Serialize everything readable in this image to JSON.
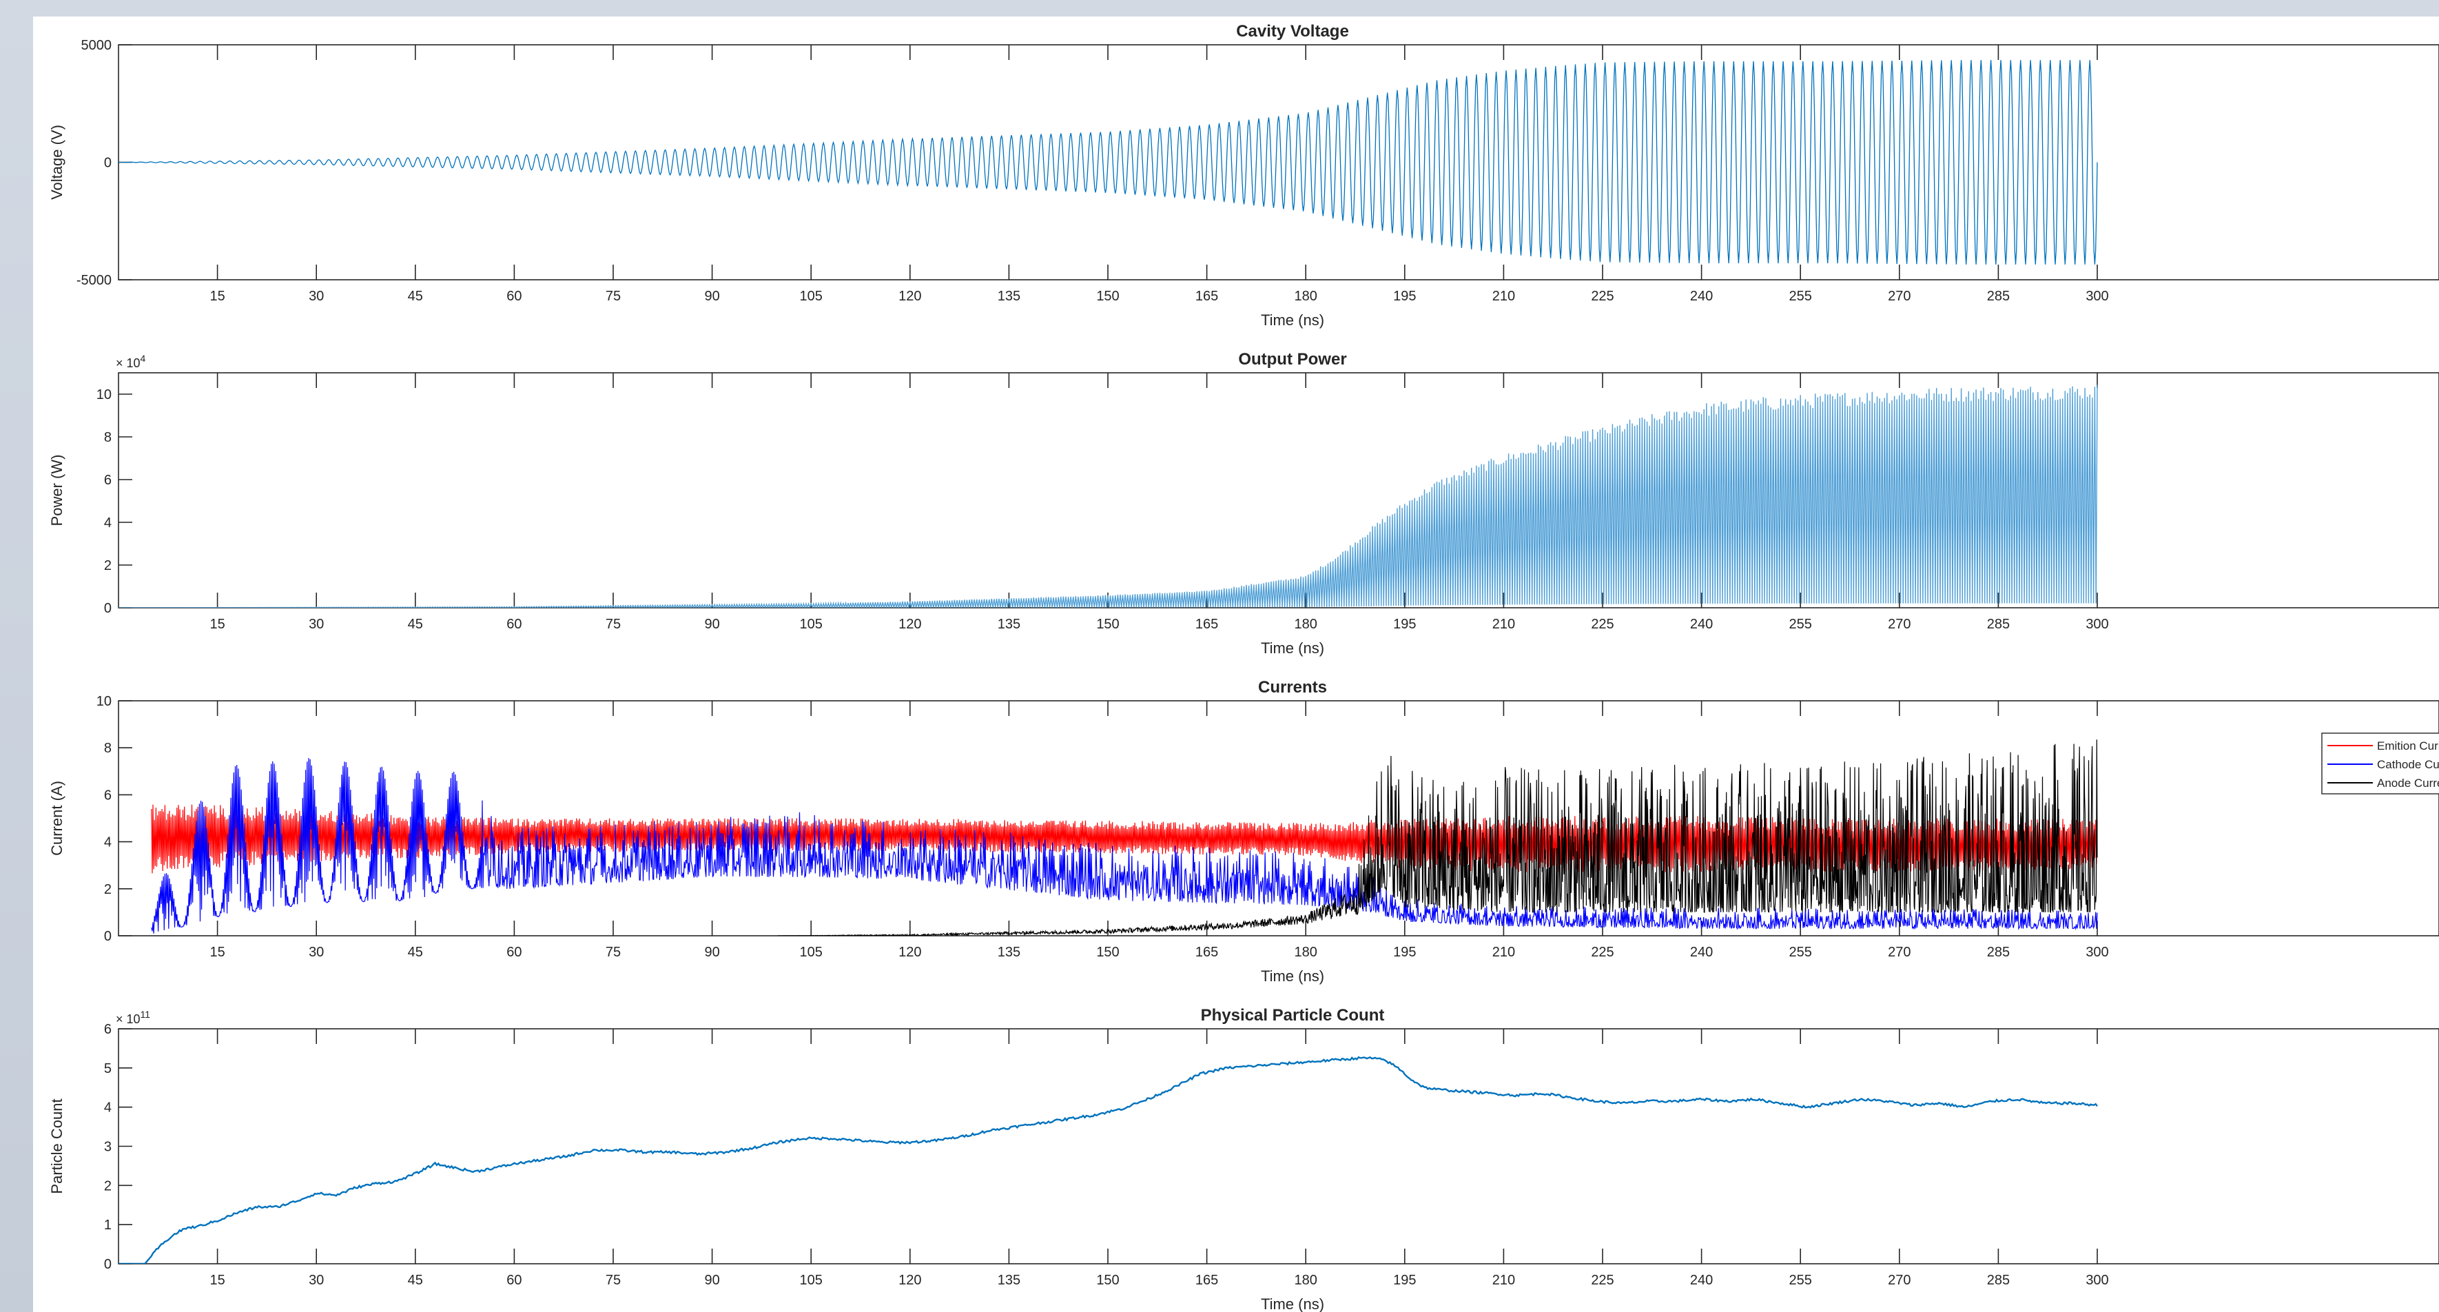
{
  "chart_data": [
    {
      "type": "line",
      "title": "Cavity Voltage",
      "xlabel": "Time (ns)",
      "ylabel": "Voltage (V)",
      "xlim": [
        0,
        300
      ],
      "ylim": [
        -5000,
        5000
      ],
      "x_ticks": [
        15,
        30,
        45,
        60,
        75,
        90,
        105,
        120,
        135,
        150,
        165,
        180,
        195,
        210,
        225,
        240,
        255,
        270,
        285,
        300
      ],
      "y_ticks": [
        -5000,
        0,
        5000
      ],
      "y_tick_labels": [
        "-5000",
        "0",
        "5000"
      ],
      "exponent_label": "",
      "grid": false,
      "legend": null,
      "render": "oscillation",
      "series": [
        {
          "color": "#0072bd",
          "envelope": {
            "t": [
              0,
              30,
              60,
              90,
              120,
              150,
              165,
              180,
              190,
              200,
              210,
              220,
              225,
              240,
              260,
              280,
              300
            ],
            "amplitude": [
              0,
              100,
              300,
              600,
              1000,
              1300,
              1600,
              2100,
              2800,
              3500,
              3900,
              4150,
              4250,
              4300,
              4300,
              4350,
              4350
            ]
          }
        }
      ]
    },
    {
      "type": "line",
      "title": "Output Power",
      "xlabel": "Time (ns)",
      "ylabel": "Power (W)",
      "xlim": [
        0,
        300
      ],
      "ylim": [
        0,
        11
      ],
      "x_ticks": [
        15,
        30,
        45,
        60,
        75,
        90,
        105,
        120,
        135,
        150,
        165,
        180,
        195,
        210,
        225,
        240,
        255,
        270,
        285,
        300
      ],
      "y_ticks": [
        0,
        2,
        4,
        6,
        8,
        10
      ],
      "y_tick_labels": [
        "0",
        "2",
        "4",
        "6",
        "8",
        "10"
      ],
      "exponent_label": "× 10^4",
      "grid": false,
      "legend": null,
      "render": "power",
      "series": [
        {
          "color": "#4f9fd6",
          "envelope": {
            "t": [
              0,
              60,
              105,
              120,
              150,
              165,
              180,
              185,
              190,
              195,
              200,
              210,
              220,
              230,
              240,
              250,
              260,
              270,
              300
            ],
            "max": [
              0,
              0.05,
              0.2,
              0.3,
              0.6,
              0.8,
              1.5,
              2.5,
              3.8,
              5.0,
              6.0,
              7.2,
              8.1,
              8.9,
              9.6,
              9.9,
              10.1,
              10.3,
              10.5
            ]
          }
        }
      ]
    },
    {
      "type": "line",
      "title": "Currents",
      "xlabel": "Time (ns)",
      "ylabel": "Current (A)",
      "xlim": [
        0,
        300
      ],
      "ylim": [
        0,
        10
      ],
      "x_ticks": [
        15,
        30,
        45,
        60,
        75,
        90,
        105,
        120,
        135,
        150,
        165,
        180,
        195,
        210,
        225,
        240,
        255,
        270,
        285,
        300
      ],
      "y_ticks": [
        0,
        2,
        4,
        6,
        8,
        10
      ],
      "y_tick_labels": [
        "0",
        "2",
        "4",
        "6",
        "8",
        "10"
      ],
      "exponent_label": "",
      "grid": false,
      "legend": {
        "location": "top-right"
      },
      "render": "currents",
      "series": [
        {
          "name": "Emition Current",
          "color": "#ff0000",
          "x": [
            5,
            15,
            30,
            45,
            60,
            90,
            120,
            150,
            180,
            195,
            210,
            240,
            270,
            300
          ],
          "low": [
            2.6,
            2.9,
            3.1,
            3.3,
            3.5,
            3.6,
            3.6,
            3.5,
            3.4,
            2.8,
            2.7,
            2.7,
            2.7,
            2.8
          ],
          "high": [
            5.6,
            5.6,
            5.4,
            5.1,
            5.0,
            5.0,
            5.0,
            4.9,
            4.8,
            5.0,
            5.1,
            5.1,
            5.0,
            5.0
          ]
        },
        {
          "name": "Cathode Current",
          "color": "#0000ff",
          "x": [
            5,
            15,
            30,
            45,
            50,
            60,
            90,
            105,
            120,
            150,
            180,
            190,
            195,
            210,
            240,
            270,
            300
          ],
          "low": [
            0,
            0.8,
            1.4,
            1.5,
            2.0,
            2.0,
            2.5,
            2.5,
            2.4,
            1.5,
            1.3,
            1.0,
            0.6,
            0.4,
            0.3,
            0.3,
            0.3
          ],
          "high": [
            1.5,
            7.2,
            7.6,
            7.0,
            7.2,
            4.6,
            5.0,
            5.3,
            4.8,
            4.0,
            3.6,
            2.7,
            1.6,
            1.3,
            1.2,
            1.2,
            1.1
          ]
        },
        {
          "name": "Anode Current",
          "color": "#000000",
          "x": [
            100,
            120,
            150,
            170,
            180,
            188,
            192,
            195,
            210,
            240,
            270,
            300
          ],
          "low": [
            0,
            0,
            0.1,
            0.3,
            0.5,
            0.9,
            2.0,
            1.2,
            1.0,
            1.0,
            1.0,
            1.0
          ],
          "high": [
            0,
            0.1,
            0.4,
            0.8,
            1.2,
            3.0,
            9.0,
            7.0,
            7.2,
            7.3,
            7.5,
            8.5
          ]
        }
      ]
    },
    {
      "type": "line",
      "title": "Physical Particle Count",
      "xlabel": "Time (ns)",
      "ylabel": "Particle Count",
      "xlim": [
        0,
        300
      ],
      "ylim": [
        0,
        6
      ],
      "x_ticks": [
        15,
        30,
        45,
        60,
        75,
        90,
        105,
        120,
        135,
        150,
        165,
        180,
        195,
        210,
        225,
        240,
        255,
        270,
        285,
        300
      ],
      "y_ticks": [
        0,
        1,
        2,
        3,
        4,
        5,
        6
      ],
      "y_tick_labels": [
        "0",
        "1",
        "2",
        "3",
        "4",
        "5",
        "6"
      ],
      "exponent_label": "× 10^11",
      "grid": false,
      "legend": null,
      "render": "line",
      "series": [
        {
          "color": "#0072bd",
          "x": [
            0,
            4,
            6,
            8,
            10,
            12,
            15,
            18,
            21,
            24,
            27,
            30,
            33,
            36,
            39,
            42,
            45,
            48,
            51,
            54,
            57,
            60,
            64,
            68,
            72,
            76,
            80,
            84,
            88,
            92,
            96,
            100,
            104,
            108,
            112,
            116,
            120,
            124,
            128,
            132,
            136,
            140,
            144,
            148,
            152,
            156,
            160,
            164,
            168,
            172,
            176,
            180,
            184,
            188,
            190,
            192,
            194,
            196,
            198,
            200,
            204,
            208,
            212,
            216,
            220,
            224,
            228,
            232,
            236,
            240,
            244,
            248,
            252,
            256,
            260,
            264,
            268,
            272,
            276,
            280,
            284,
            288,
            292,
            296,
            300
          ],
          "y": [
            0,
            0,
            0.4,
            0.7,
            0.9,
            0.95,
            1.1,
            1.3,
            1.45,
            1.45,
            1.6,
            1.8,
            1.75,
            1.95,
            2.05,
            2.1,
            2.3,
            2.55,
            2.45,
            2.35,
            2.45,
            2.55,
            2.65,
            2.75,
            2.9,
            2.9,
            2.85,
            2.85,
            2.8,
            2.85,
            2.95,
            3.1,
            3.2,
            3.2,
            3.15,
            3.1,
            3.1,
            3.15,
            3.25,
            3.4,
            3.5,
            3.6,
            3.7,
            3.8,
            3.95,
            4.2,
            4.5,
            4.85,
            5.0,
            5.05,
            5.1,
            5.15,
            5.2,
            5.25,
            5.25,
            5.2,
            5.0,
            4.7,
            4.5,
            4.45,
            4.4,
            4.35,
            4.3,
            4.35,
            4.25,
            4.15,
            4.1,
            4.15,
            4.15,
            4.2,
            4.15,
            4.2,
            4.1,
            4.0,
            4.1,
            4.2,
            4.15,
            4.05,
            4.1,
            4.0,
            4.15,
            4.2,
            4.1,
            4.1,
            4.05
          ]
        }
      ]
    }
  ]
}
